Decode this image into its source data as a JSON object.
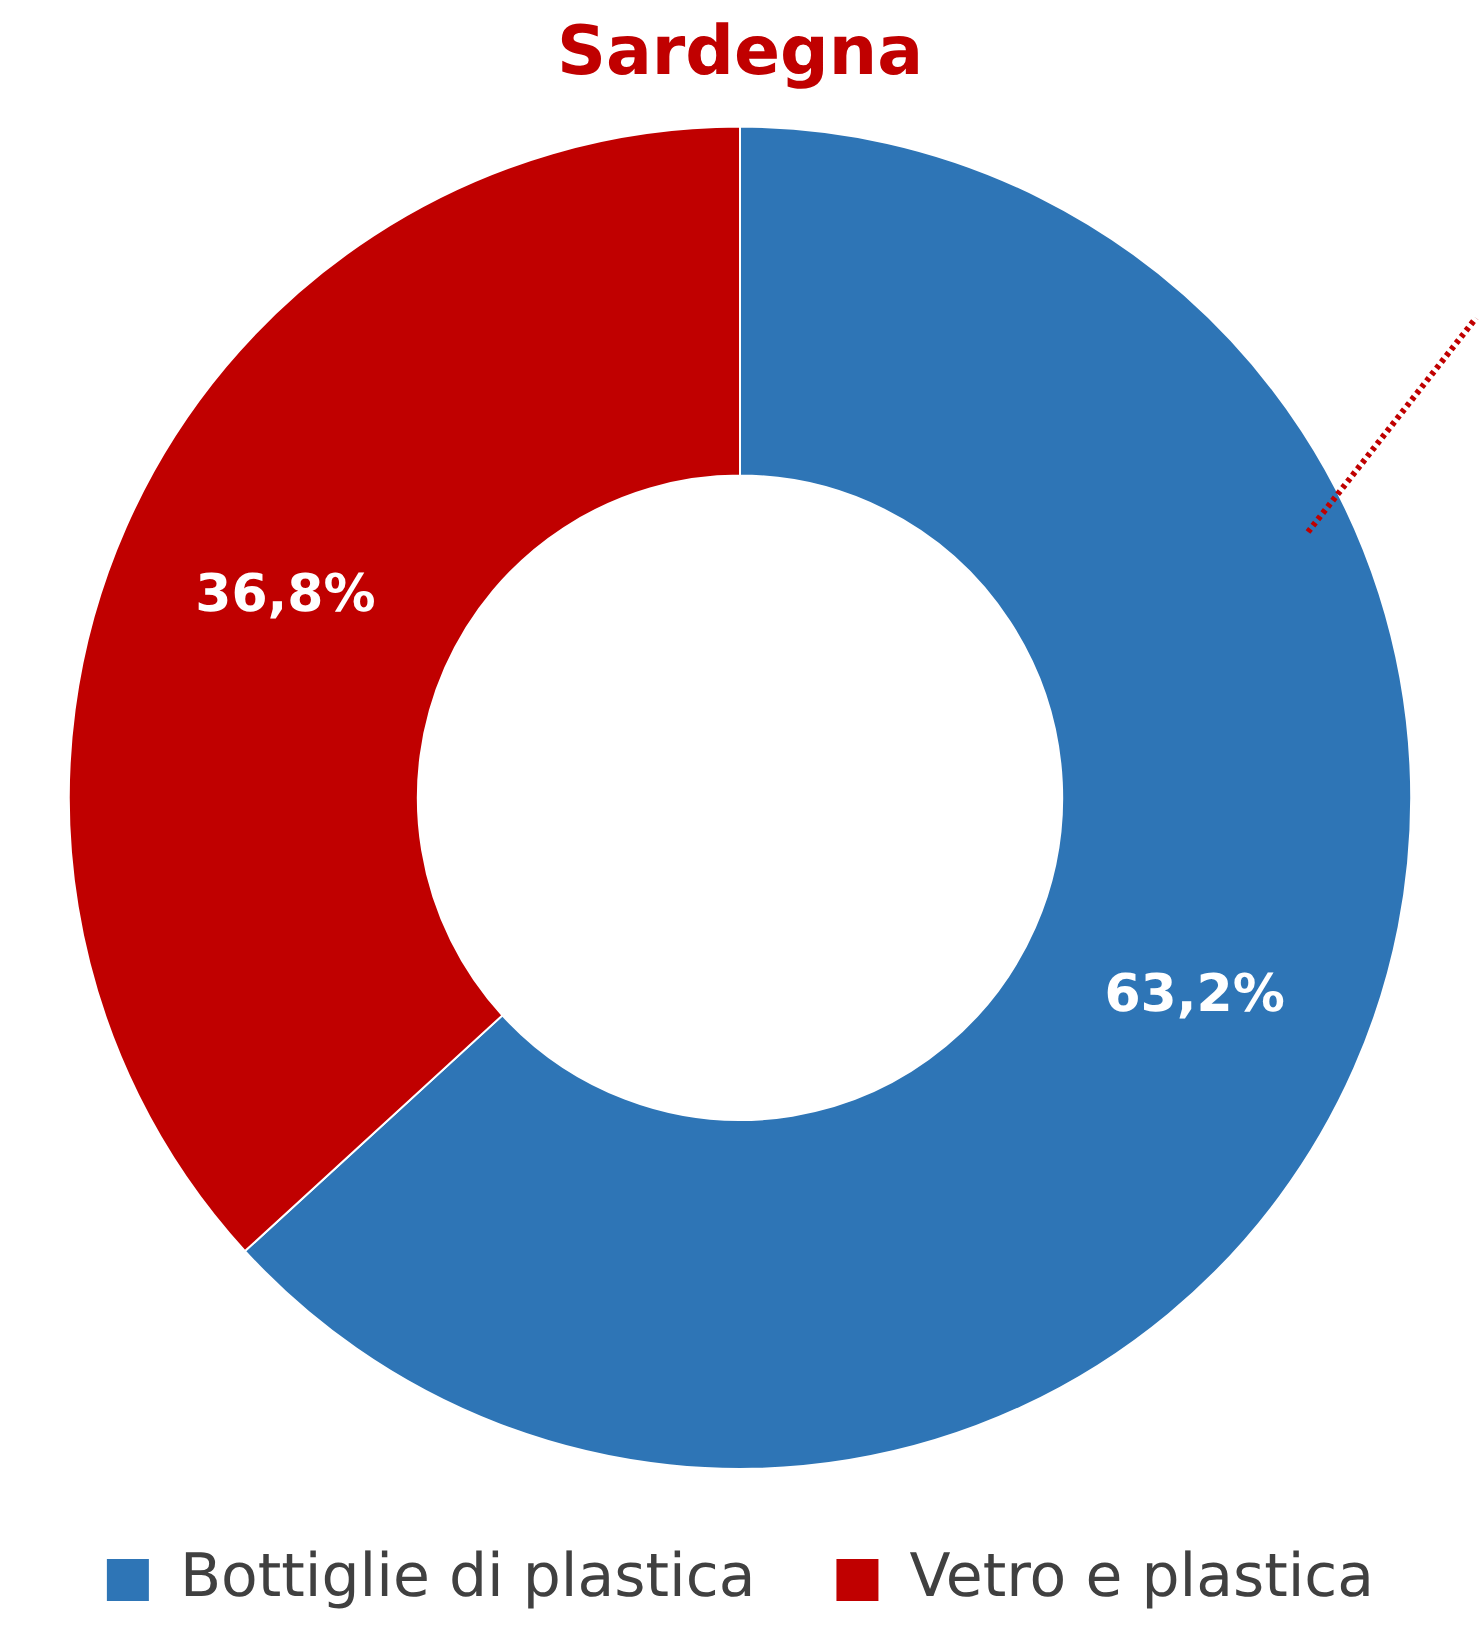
{
  "chart_data": {
    "type": "donut",
    "title": "Sardegna",
    "categories": [
      "Bottiglie di plastica",
      "Vetro e plastica"
    ],
    "values": [
      63.2,
      36.8
    ],
    "colors": [
      "#2e75b6",
      "#c00000"
    ],
    "value_labels": [
      "63,2%",
      "36,8%"
    ],
    "legend": "bottom"
  }
}
